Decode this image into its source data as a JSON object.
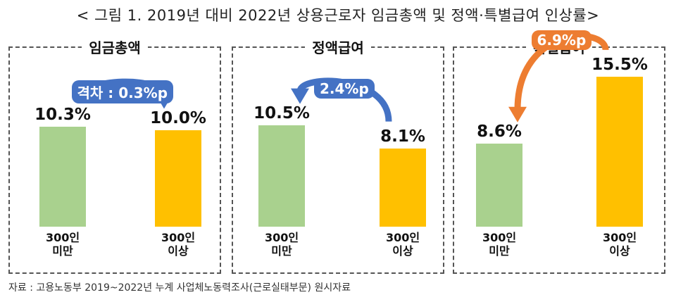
{
  "title": "< 그림 1. 2019년 대비 2022년 상용근로자 임금총액 및 정액·특별급여 인상률>",
  "source": "자료 : 고용노동부 2019~2022년 누계 사업체노동력조사(근로실태부문) 원시자료",
  "colors": {
    "small": "#a9d18e",
    "large": "#ffc000",
    "blue": "#4472c4",
    "orange": "#ed7d31"
  },
  "chart_data": [
    {
      "type": "bar",
      "title": "임금총액",
      "categories": [
        "300인\n미만",
        "300인\n이상"
      ],
      "values": [
        10.3,
        10.0
      ],
      "value_labels": [
        "10.3%",
        "10.0%"
      ],
      "ylim": [
        0,
        16
      ],
      "annotation": {
        "text": "격차 : 0.3%p",
        "color": "#4472c4"
      }
    },
    {
      "type": "bar",
      "title": "정액급여",
      "categories": [
        "300인\n미만",
        "300인\n이상"
      ],
      "values": [
        10.5,
        8.1
      ],
      "value_labels": [
        "10.5%",
        "8.1%"
      ],
      "ylim": [
        0,
        16
      ],
      "annotation": {
        "text": "2.4%p",
        "color": "#4472c4"
      }
    },
    {
      "type": "bar",
      "title": "특별급여",
      "categories": [
        "300인\n미만",
        "300인\n이상"
      ],
      "values": [
        8.6,
        15.5
      ],
      "value_labels": [
        "8.6%",
        "15.5%"
      ],
      "ylim": [
        0,
        16
      ],
      "annotation": {
        "text": "6.9%p",
        "color": "#ed7d31"
      }
    }
  ]
}
